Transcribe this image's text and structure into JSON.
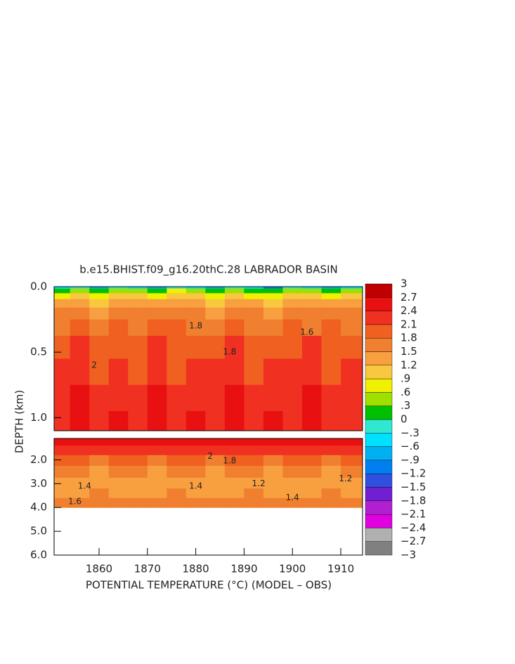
{
  "chart_data": {
    "type": "contour",
    "title": "b.e15.BHIST.f09_g16.20thC.28 LABRADOR BASIN",
    "xlabel": "POTENTIAL TEMPERATURE (°C) (MODEL – OBS)",
    "ylabel": "DEPTH (km)",
    "xlim": [
      1850.7,
      1914.5
    ],
    "xticks": [
      1860,
      1870,
      1880,
      1890,
      1900,
      1910
    ],
    "years": [
      1852,
      1856,
      1860,
      1864,
      1868,
      1872,
      1876,
      1880,
      1884,
      1888,
      1892,
      1896,
      1900,
      1904,
      1908,
      1912
    ],
    "panels": [
      {
        "ylim": [
          0,
          1.1
        ],
        "yticks": [
          {
            "value": 0,
            "label": "0.0"
          },
          {
            "value": 0.5,
            "label": "0.5"
          },
          {
            "value": 1,
            "label": "1.0"
          }
        ],
        "depths": [
          0,
          0.03,
          0.07,
          0.12,
          0.2,
          0.3,
          0.45,
          0.65,
          0.85,
          1.05
        ],
        "values": [
          [
            -0.6,
            -0.3,
            -0.8,
            -0.2,
            -0.5,
            -0.7,
            -0.1,
            -0.4,
            -0.9,
            -0.3,
            -0.6,
            -1.0,
            -0.2,
            -0.5,
            -0.7,
            -0.4
          ],
          [
            0.2,
            0.4,
            0.1,
            0.5,
            0.3,
            0.2,
            0.6,
            0.3,
            0.1,
            0.4,
            0.2,
            0.0,
            0.5,
            0.3,
            0.2,
            0.4
          ],
          [
            0.8,
            1.0,
            0.7,
            1.1,
            0.9,
            0.8,
            1.0,
            0.9,
            0.7,
            1.0,
            0.8,
            0.6,
            1.1,
            0.9,
            0.8,
            1.0
          ],
          [
            1.2,
            1.4,
            1.1,
            1.3,
            1.2,
            1.3,
            1.4,
            1.2,
            1.1,
            1.3,
            1.2,
            1.1,
            1.4,
            1.2,
            1.3,
            1.2
          ],
          [
            1.5,
            1.6,
            1.4,
            1.7,
            1.5,
            1.6,
            1.7,
            1.5,
            1.4,
            1.6,
            1.5,
            1.4,
            1.7,
            1.5,
            1.6,
            1.5
          ],
          [
            1.7,
            1.9,
            1.6,
            1.9,
            1.7,
            1.8,
            1.9,
            1.7,
            1.6,
            1.9,
            1.7,
            1.6,
            1.9,
            1.7,
            1.8,
            1.7
          ],
          [
            1.9,
            2.1,
            1.8,
            2.0,
            1.9,
            2.1,
            1.8,
            2.0,
            1.9,
            2.1,
            1.8,
            2.0,
            1.9,
            2.1,
            1.8,
            1.9
          ],
          [
            2.1,
            2.3,
            2.0,
            2.2,
            2.0,
            2.3,
            2.0,
            2.2,
            2.1,
            2.3,
            2.0,
            2.2,
            2.1,
            2.3,
            2.0,
            2.1
          ],
          [
            2.2,
            2.4,
            2.1,
            2.3,
            2.2,
            2.4,
            2.1,
            2.3,
            2.2,
            2.4,
            2.1,
            2.3,
            2.2,
            2.4,
            2.1,
            2.2
          ],
          [
            2.3,
            2.5,
            2.2,
            2.4,
            2.3,
            2.5,
            2.2,
            2.4,
            2.3,
            2.5,
            2.2,
            2.4,
            2.3,
            2.5,
            2.2,
            2.3
          ]
        ]
      },
      {
        "ylim": [
          1.1,
          6
        ],
        "yticks": [
          {
            "value": 2,
            "label": "2.0"
          },
          {
            "value": 3,
            "label": "3.0"
          },
          {
            "value": 4,
            "label": "4.0"
          },
          {
            "value": 5,
            "label": "5.0"
          },
          {
            "value": 6,
            "label": "6.0"
          }
        ],
        "depths": [
          1.2,
          1.6,
          2.0,
          2.5,
          3.0,
          3.4,
          3.8
        ],
        "values": [
          [
            2.5,
            2.6,
            2.4,
            2.5,
            2.6,
            2.4,
            2.5,
            2.6,
            2.4,
            2.5,
            2.6,
            2.5,
            2.4,
            2.6,
            2.5,
            2.4
          ],
          [
            2.2,
            2.1,
            2.2,
            2.1,
            2.2,
            2.2,
            2.1,
            2.2,
            2.1,
            2.2,
            2.2,
            2.1,
            2.2,
            2.1,
            2.2,
            2.1
          ],
          [
            1.8,
            1.8,
            1.7,
            1.8,
            1.8,
            1.7,
            1.8,
            1.8,
            1.7,
            1.8,
            1.8,
            1.7,
            1.8,
            1.8,
            1.7,
            1.8
          ],
          [
            1.5,
            1.5,
            1.4,
            1.5,
            1.5,
            1.4,
            1.5,
            1.5,
            1.4,
            1.5,
            1.5,
            1.4,
            1.5,
            1.5,
            1.4,
            1.5
          ],
          [
            1.4,
            1.3,
            1.3,
            1.2,
            1.4,
            1.3,
            1.3,
            1.2,
            1.4,
            1.2,
            1.3,
            1.3,
            1.4,
            1.2,
            1.3,
            1.3
          ],
          [
            1.4,
            1.4,
            1.5,
            1.4,
            1.4,
            1.4,
            1.5,
            1.4,
            1.4,
            1.4,
            1.5,
            1.4,
            1.4,
            1.4,
            1.5,
            1.4
          ],
          [
            1.6,
            1.6,
            1.6,
            1.6,
            1.6,
            1.6,
            1.6,
            1.6,
            1.6,
            1.6,
            1.6,
            1.6,
            1.6,
            1.6,
            1.6,
            1.6
          ]
        ]
      }
    ],
    "colorbar": {
      "ticks": [
        {
          "value": -3,
          "label": "−3"
        },
        {
          "value": -2.7,
          "label": "−2.7"
        },
        {
          "value": -2.4,
          "label": "−2.4"
        },
        {
          "value": -2.1,
          "label": "−2.1"
        },
        {
          "value": -1.8,
          "label": "−1.8"
        },
        {
          "value": -1.5,
          "label": "−1.5"
        },
        {
          "value": -1.2,
          "label": "−1.2"
        },
        {
          "value": -0.9,
          "label": "−.9"
        },
        {
          "value": -0.6,
          "label": "−.6"
        },
        {
          "value": -0.3,
          "label": "−.3"
        },
        0,
        {
          "value": 0.3,
          "label": ".3"
        },
        {
          "value": 0.6,
          "label": ".6"
        },
        {
          "value": 0.9,
          "label": ".9"
        },
        {
          "value": 1.2,
          "label": "1.2"
        },
        {
          "value": 1.5,
          "label": "1.5"
        },
        {
          "value": 1.8,
          "label": "1.8"
        },
        {
          "value": 2.1,
          "label": "2.1"
        },
        {
          "value": 2.4,
          "label": "2.4"
        },
        {
          "value": 2.7,
          "label": "2.7"
        },
        3
      ],
      "colors": [
        "#808080",
        "#b0b0b0",
        "#e000e0",
        "#b020d0",
        "#7020d0",
        "#3050e0",
        "#0080f0",
        "#00b0f0",
        "#00e0ff",
        "#30e8d0",
        "#00c000",
        "#a0e000",
        "#f0f000",
        "#f8c840",
        "#f8a040",
        "#f08030",
        "#f06020",
        "#f03020",
        "#e81010",
        "#c00000"
      ]
    },
    "annotations": [
      {
        "text": "2",
        "x": 1859,
        "y": 0.6
      },
      {
        "text": "1.8",
        "x": 1880,
        "y": 0.3
      },
      {
        "text": "1.8",
        "x": 1887,
        "y": 0.5
      },
      {
        "text": "1.6",
        "x": 1903,
        "y": 0.35
      },
      {
        "text": "2",
        "x": 1883,
        "y": 1.85
      },
      {
        "text": "1.8",
        "x": 1887,
        "y": 2.05
      },
      {
        "text": "1.4",
        "x": 1857,
        "y": 3.1
      },
      {
        "text": "1.4",
        "x": 1880,
        "y": 3.1
      },
      {
        "text": "1.2",
        "x": 1893,
        "y": 3.0
      },
      {
        "text": "1.2",
        "x": 1911,
        "y": 2.8
      },
      {
        "text": "1.4",
        "x": 1900,
        "y": 3.6
      },
      {
        "text": "1.6",
        "x": 1855,
        "y": 3.75
      }
    ]
  }
}
